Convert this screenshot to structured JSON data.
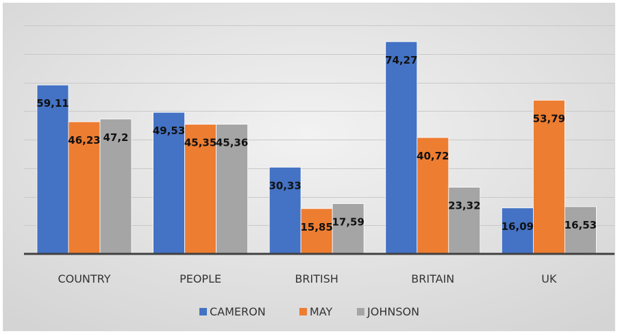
{
  "chart_data": {
    "type": "bar",
    "categories": [
      "COUNTRY",
      "PEOPLE",
      "BRITISH",
      "BRITAIN",
      "UK"
    ],
    "series": [
      {
        "name": "CAMERON",
        "color": "#4472c4",
        "values": [
          59.11,
          49.53,
          30.33,
          74.27,
          16.09
        ],
        "labels": [
          "59,11",
          "49,53",
          "30,33",
          "74,27",
          "16,09"
        ]
      },
      {
        "name": "MAY",
        "color": "#ed7d31",
        "values": [
          46.23,
          45.35,
          15.85,
          40.72,
          53.79
        ],
        "labels": [
          "46,23",
          "45,35",
          "15,85",
          "40,72",
          "53,79"
        ]
      },
      {
        "name": "JOHNSON",
        "color": "#a5a5a5",
        "values": [
          47.2,
          45.36,
          17.59,
          23.32,
          16.53
        ],
        "labels": [
          "47,2",
          "45,36",
          "17,59",
          "23,32",
          "16,53"
        ]
      }
    ],
    "title": "",
    "xlabel": "",
    "ylabel": "",
    "ylim": [
      0,
      80
    ],
    "grid": true,
    "legend": "bottom",
    "background_gradient": [
      "#f2f2f2",
      "#d4d4d4"
    ]
  }
}
